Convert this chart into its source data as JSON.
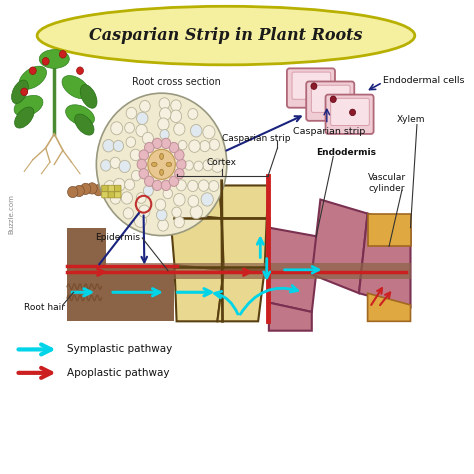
{
  "title": "Casparian Strip in Plant Roots",
  "bg_color": "#ffffff",
  "title_bg": "#f5f0a0",
  "title_border": "#b8b000",
  "labels": {
    "root_cross_section": "Root cross section",
    "endodermal_cells": "Endodermal cells",
    "casparian_strip_top": "Casparian strip",
    "xylem": "Xylem",
    "endodermis": "Endodermis",
    "casparian_strip_bottom": "Casparian strip",
    "vascular_cylinder": "Vascular\ncylinder",
    "cortex": "Cortex",
    "epidermis": "Epidermis",
    "root_hair": "Root hair",
    "symplastic": "Symplastic pathway",
    "apoplastic": "Apoplastic pathway",
    "buzzle": "Buzzle.com"
  },
  "colors": {
    "navy": "#1a237e",
    "cyan": "#00d4e8",
    "red": "#cc2020",
    "brown_soil": "#8b6347",
    "brown_dark": "#5a3a1a",
    "cortex_yellow": "#e8d890",
    "cortex_border": "#5a4010",
    "vascular_pink": "#c07888",
    "vascular_border": "#7a3050",
    "xylem_orange": "#e0a840",
    "xylem_border": "#a06820",
    "endoderm_pink": "#d4a0a8",
    "cross_bg": "#f0ead0",
    "cross_cell": "#f8f4e0",
    "cross_border": "#aaa890",
    "endocell_pink": "#f0c8cc",
    "endocell_dark": "#c07080",
    "strip_red": "#aa1010"
  }
}
